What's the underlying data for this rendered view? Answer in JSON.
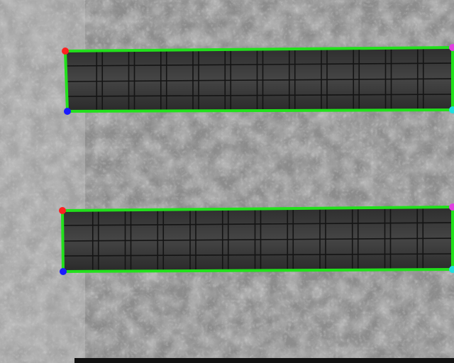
{
  "image": {
    "description_tag": "aerial-thermal-solar-panels",
    "panel_rows": [
      {
        "name": "upper-panel-row",
        "modules": 12,
        "sub_rows": 4
      },
      {
        "name": "lower-panel-row",
        "modules": 12,
        "sub_rows": 4
      }
    ],
    "colors": {
      "outline": "#22e01c",
      "corner_top_left": "#ff2020",
      "corner_bottom_left": "#1a1aff",
      "corner_top_right": "#e040e0",
      "corner_bottom_right": "#20e0e0",
      "panel_fill": "#3a3a3a",
      "panel_grid": "#151515"
    }
  }
}
